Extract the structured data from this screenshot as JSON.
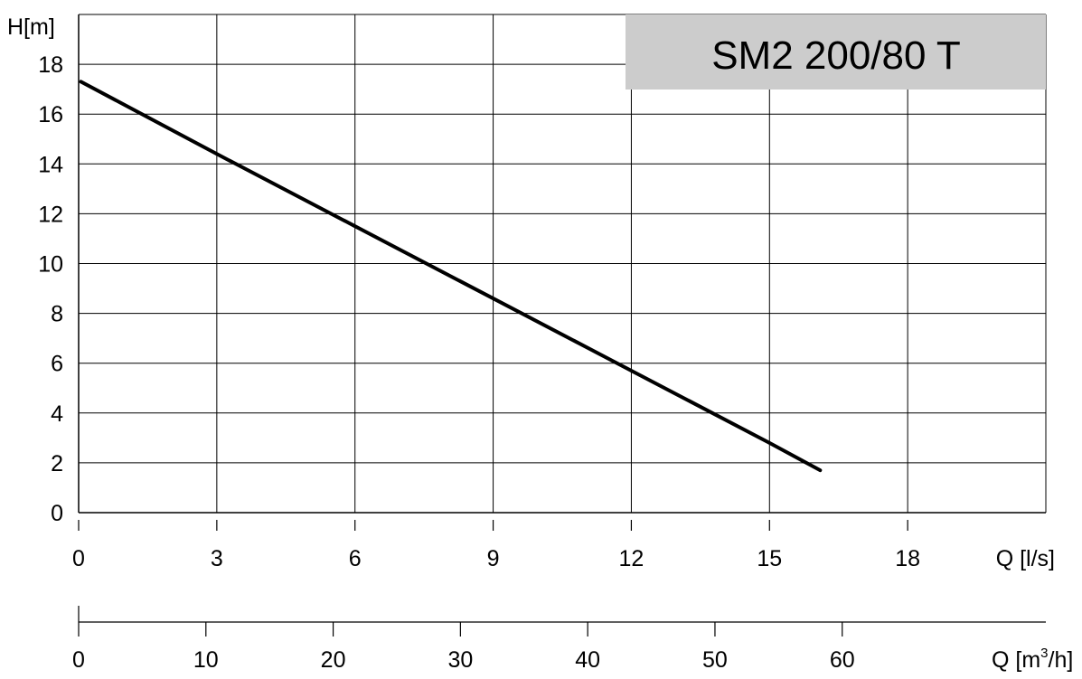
{
  "chart_data": {
    "type": "line",
    "title": "SM2 200/80 T",
    "title_box_color": "#cccccc",
    "line_color": "#000000",
    "grid": true,
    "y_axis": {
      "label": "H[m]",
      "range": [
        0,
        20
      ],
      "ticks": [
        0,
        2,
        4,
        6,
        8,
        10,
        12,
        14,
        16,
        18
      ]
    },
    "x_axis": {
      "label": "Q [l/s]",
      "range": [
        0,
        21
      ],
      "ticks": [
        0,
        3,
        6,
        9,
        12,
        15,
        18
      ]
    },
    "x2_axis": {
      "label_main": "Q [m",
      "label_sup": "3",
      "label_end": "/h]",
      "range": [
        0,
        76
      ],
      "ticks": [
        0,
        10,
        20,
        30,
        40,
        50,
        60
      ]
    },
    "series": [
      {
        "x": [
          0.05,
          3,
          6,
          9,
          12,
          15,
          16.1
        ],
        "y": [
          17.3,
          14.4,
          11.5,
          8.6,
          5.7,
          2.8,
          1.7
        ]
      }
    ]
  }
}
